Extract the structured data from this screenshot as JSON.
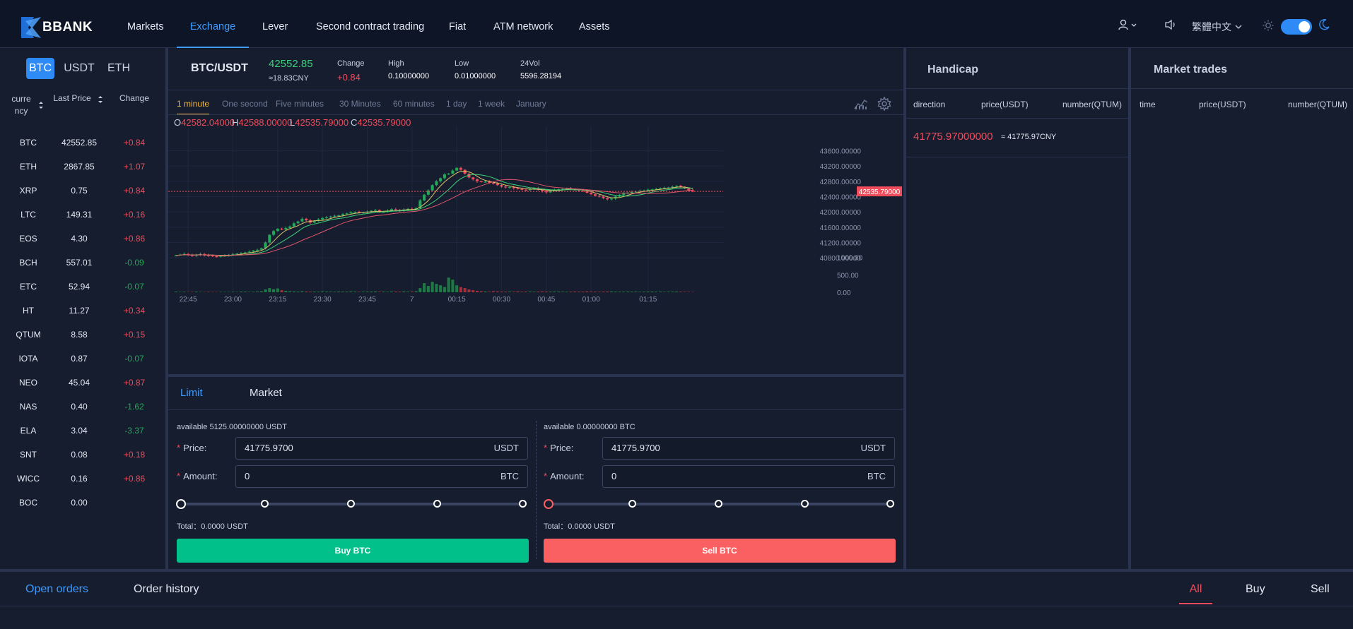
{
  "nav": {
    "brand": "BBANK",
    "items": [
      "Markets",
      "Exchange",
      "Lever",
      "Second contract trading",
      "Fiat",
      "ATM network",
      "Assets"
    ],
    "active_index": 1,
    "language": "繁體中文"
  },
  "markets": {
    "tabs": [
      "BTC",
      "USDT",
      "ETH"
    ],
    "active_tab": 0,
    "headers": {
      "currency_line1": "curre",
      "currency_line2": "ncy",
      "last_price": "Last Price",
      "change": "Change"
    },
    "rows": [
      {
        "currency": "BTC",
        "price": "42552.85",
        "change": "+0.84",
        "dir": "up"
      },
      {
        "currency": "ETH",
        "price": "2867.85",
        "change": "+1.07",
        "dir": "up"
      },
      {
        "currency": "XRP",
        "price": "0.75",
        "change": "+0.84",
        "dir": "up"
      },
      {
        "currency": "LTC",
        "price": "149.31",
        "change": "+0.16",
        "dir": "up"
      },
      {
        "currency": "EOS",
        "price": "4.30",
        "change": "+0.86",
        "dir": "up"
      },
      {
        "currency": "BCH",
        "price": "557.01",
        "change": "-0.09",
        "dir": "dn"
      },
      {
        "currency": "ETC",
        "price": "52.94",
        "change": "-0.07",
        "dir": "dn"
      },
      {
        "currency": "HT",
        "price": "11.27",
        "change": "+0.34",
        "dir": "up"
      },
      {
        "currency": "QTUM",
        "price": "8.58",
        "change": "+0.15",
        "dir": "up"
      },
      {
        "currency": "IOTA",
        "price": "0.87",
        "change": "-0.07",
        "dir": "dn"
      },
      {
        "currency": "NEO",
        "price": "45.04",
        "change": "+0.87",
        "dir": "up"
      },
      {
        "currency": "NAS",
        "price": "0.40",
        "change": "-1.62",
        "dir": "dn"
      },
      {
        "currency": "ELA",
        "price": "3.04",
        "change": "-3.37",
        "dir": "dn"
      },
      {
        "currency": "SNT",
        "price": "0.08",
        "change": "+0.18",
        "dir": "up"
      },
      {
        "currency": "WICC",
        "price": "0.16",
        "change": "+0.86",
        "dir": "up"
      },
      {
        "currency": "BOC",
        "price": "0.00",
        "change": "",
        "dir": "up"
      }
    ]
  },
  "ticker": {
    "pair": "BTC/USDT",
    "price": "42552.85",
    "cny": "≈18.83CNY",
    "change_label": "Change",
    "change": "+0.84",
    "high_label": "High",
    "high": "0.10000000",
    "low_label": "Low",
    "low": "0.01000000",
    "vol_label": "24Vol",
    "vol": "5596.28194"
  },
  "chart_tabs": [
    "1 minute",
    "One second",
    "Five minutes",
    "30 Minutes",
    "60 minutes",
    "1 day",
    "1 week",
    "January"
  ],
  "chart_tab_active": 0,
  "chart_data": {
    "type": "candlestick",
    "ohlc": {
      "O": "42582.04000",
      "H": "42588.00000",
      "L": "42535.79000",
      "C": "42535.79000"
    },
    "ohlc_labels": {
      "O": "O",
      "H": "H",
      "L": "L",
      "C": "C"
    },
    "price_ticks": [
      "43600.00000",
      "43200.00000",
      "42800.00000",
      "42400.00000",
      "42000.00000",
      "41600.00000",
      "41200.00000",
      "40800.00000"
    ],
    "price_tick_values": [
      43600,
      43200,
      42800,
      42400,
      42000,
      41600,
      41200,
      40800
    ],
    "ylim": [
      40600,
      43700
    ],
    "volume_ticks": [
      "1000.00",
      "500.00",
      "0.00"
    ],
    "volume_tick_values": [
      1000,
      500,
      0
    ],
    "time_ticks": [
      "22:45",
      "23:00",
      "23:15",
      "23:30",
      "23:45",
      "7",
      "00:15",
      "00:30",
      "00:45",
      "01:00",
      "01:15"
    ],
    "current_price_label": "42535.79000",
    "current_price": 42535.79,
    "close_series": [
      40860,
      40880,
      40900,
      40870,
      40850,
      40880,
      40900,
      40870,
      40860,
      40840,
      40830,
      40850,
      40860,
      40880,
      40900,
      40910,
      40920,
      40940,
      40960,
      40990,
      41010,
      41050,
      41200,
      41400,
      41500,
      41560,
      41540,
      41580,
      41620,
      41700,
      41750,
      41820,
      41780,
      41720,
      41760,
      41800,
      41840,
      41860,
      41880,
      41900,
      41910,
      41940,
      41960,
      41990,
      42000,
      41980,
      41990,
      42010,
      42030,
      42050,
      41990,
      42000,
      42030,
      42070,
      42050,
      42030,
      42060,
      42080,
      42070,
      42100,
      42300,
      42450,
      42560,
      42700,
      42800,
      42880,
      42980,
      43000,
      43080,
      43150,
      43100,
      43000,
      42900,
      42850,
      42800,
      42780,
      42790,
      42760,
      42740,
      42700,
      42660,
      42640,
      42650,
      42620,
      42600,
      42580,
      42570,
      42600,
      42620,
      42580,
      42540,
      42510,
      42560,
      42580,
      42590,
      42600,
      42620,
      42600,
      42580,
      42560,
      42540,
      42500,
      42460,
      42420,
      42400,
      42360,
      42330,
      42350,
      42400,
      42440,
      42480,
      42500,
      42520,
      42530,
      42550,
      42560,
      42580,
      42590,
      42600,
      42620,
      42630,
      42640,
      42660,
      42680,
      42650,
      42610,
      42560,
      42535
    ],
    "volume_series": [
      20,
      10,
      15,
      8,
      12,
      18,
      10,
      9,
      14,
      10,
      8,
      12,
      10,
      9,
      15,
      10,
      20,
      18,
      12,
      14,
      22,
      30,
      80,
      120,
      90,
      110,
      60,
      40,
      30,
      25,
      20,
      30,
      22,
      18,
      20,
      15,
      25,
      20,
      18,
      15,
      22,
      20,
      18,
      25,
      20,
      15,
      18,
      20,
      22,
      25,
      18,
      20,
      15,
      22,
      20,
      18,
      25,
      20,
      22,
      30,
      120,
      260,
      180,
      300,
      240,
      200,
      150,
      420,
      360,
      200,
      150,
      120,
      80,
      60,
      40,
      30,
      25,
      20,
      30,
      25,
      20,
      18,
      22,
      20,
      25,
      18,
      20,
      22,
      18,
      20,
      25,
      20,
      18,
      22,
      20,
      18,
      15,
      20,
      22,
      18,
      20,
      25,
      20,
      18,
      15,
      20,
      22,
      25,
      20,
      18,
      20,
      22,
      18,
      20,
      15,
      18,
      20,
      22,
      18,
      20,
      15,
      18,
      20,
      22,
      18,
      15,
      12,
      10
    ]
  },
  "order": {
    "tabs": [
      "Limit",
      "Market"
    ],
    "active_tab": 0,
    "buy": {
      "available": "available 5125.00000000 USDT",
      "price_label": "Price",
      "price": "41775.9700",
      "price_unit": "USDT",
      "amount_label": "Amount",
      "amount": "0",
      "amount_unit": "BTC",
      "total": "Total：0.0000 USDT",
      "button": "Buy BTC"
    },
    "sell": {
      "available": "available 0.00000000 BTC",
      "price_label": "Price",
      "price": "41775.9700",
      "price_unit": "USDT",
      "amount_label": "Amount",
      "amount": "0",
      "amount_unit": "BTC",
      "total": "Total：0.0000 USDT",
      "button": "Sell BTC"
    },
    "colon": ":"
  },
  "handicap": {
    "title": "Handicap",
    "headers": [
      "direction",
      "price(USDT)",
      "number(QTUM)"
    ],
    "current_price": "41775.97000000",
    "current_cny": "≈ 41775.97CNY"
  },
  "trades": {
    "title": "Market trades",
    "headers": [
      "time",
      "price(USDT)",
      "number(QTUM)"
    ]
  },
  "orders": {
    "tabs": [
      "Open orders",
      "Order history"
    ],
    "active_tab": 0,
    "filters": [
      "All",
      "Buy",
      "Sell"
    ],
    "active_filter": 0
  },
  "colors": {
    "up": "#f24c5c",
    "down": "#23a85a",
    "accent": "#2e8bf5",
    "buy": "#02c08a",
    "sell": "#fa5f62",
    "tab_active": "#f3b63a"
  }
}
